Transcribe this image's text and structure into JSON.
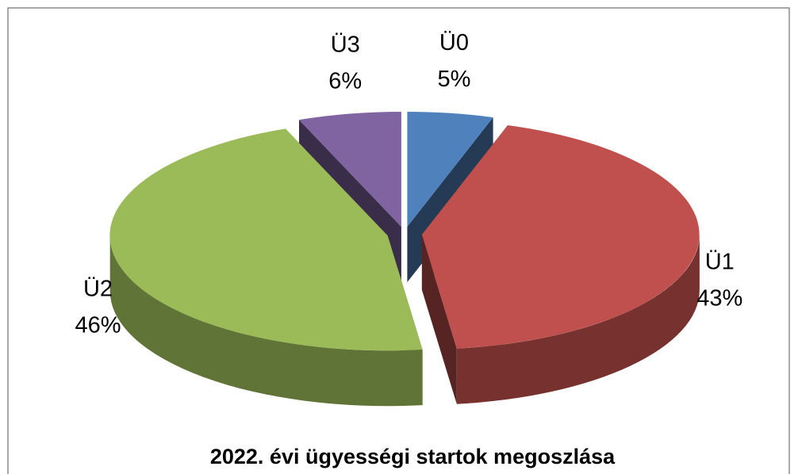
{
  "chart_data": {
    "type": "pie",
    "title": "2022. évi ügyességi startok megoszlása",
    "categories": [
      "Ü0",
      "Ü1",
      "Ü2",
      "Ü3"
    ],
    "values": [
      5,
      43,
      46,
      6
    ],
    "value_labels": [
      "5%",
      "43%",
      "46%",
      "6%"
    ],
    "colors": [
      "#4f81bd",
      "#c0504d",
      "#9bbb59",
      "#8064a2"
    ]
  }
}
